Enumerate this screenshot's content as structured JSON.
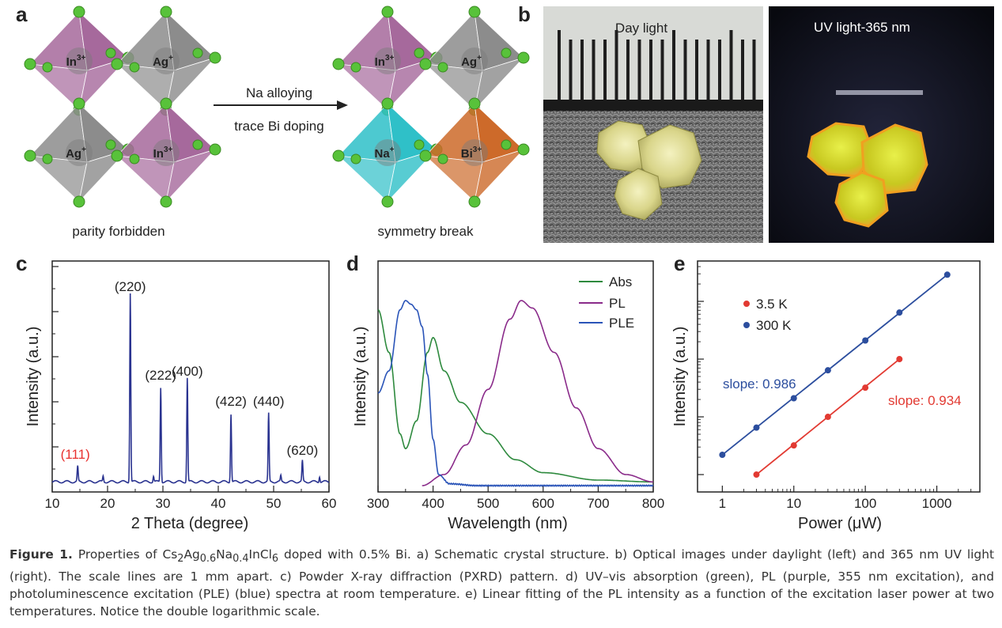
{
  "panels": {
    "a": {
      "letter": "a",
      "left_labels": [
        "In3+",
        "Ag+",
        "Ag+",
        "In3+"
      ],
      "right_labels": [
        "In3+",
        "Ag+",
        "Na+",
        "Bi3+"
      ],
      "arrow_top": "Na alloying",
      "arrow_bottom": "trace Bi doping",
      "caption_left": "parity forbidden",
      "caption_right": "symmetry break"
    },
    "b": {
      "letter": "b",
      "day_label": "Day light",
      "uv_label": "UV light-365 nm"
    },
    "c": {
      "letter": "c",
      "xlabel": "2 Theta (degree)",
      "ylabel": "Intensity (a.u.)",
      "xticks": [
        "10",
        "20",
        "30",
        "40",
        "50",
        "60"
      ],
      "peaks": [
        {
          "label": "(111)",
          "x": 14.6,
          "h": 0.08,
          "color": "#e8312f"
        },
        {
          "label": "(220)",
          "x": 24.1,
          "h": 1.0,
          "color": "#222222"
        },
        {
          "label": "(222)",
          "x": 29.6,
          "h": 0.5,
          "color": "#222222"
        },
        {
          "label": "(400)",
          "x": 34.4,
          "h": 0.55,
          "color": "#222222"
        },
        {
          "label": "(422)",
          "x": 42.3,
          "h": 0.36,
          "color": "#222222"
        },
        {
          "label": "(440)",
          "x": 49.1,
          "h": 0.36,
          "color": "#222222"
        },
        {
          "label": "(620)",
          "x": 55.2,
          "h": 0.11,
          "color": "#222222"
        }
      ]
    },
    "d": {
      "letter": "d",
      "xlabel": "Wavelength (nm)",
      "ylabel": "Intensity (a.u.)",
      "xticks": [
        "300",
        "400",
        "500",
        "600",
        "700",
        "800"
      ],
      "legend": [
        "Abs",
        "PL",
        "PLE"
      ]
    },
    "e": {
      "letter": "e",
      "xlabel": "Power (μW)",
      "ylabel": "Intensity (a.u.)",
      "xticks": [
        "1",
        "10",
        "100",
        "1000"
      ],
      "legend": [
        "3.5 K",
        "300 K"
      ],
      "slope_blue": "slope: 0.986",
      "slope_red": "slope: 0.934"
    }
  },
  "colors": {
    "in_oct": "#a6699c",
    "ag_oct": "#8c8c8c",
    "na_oct": "#2fc0c8",
    "bi_oct": "#cd6a2a",
    "cl": "#58c23a",
    "xrd": "#2a3390",
    "abs": "#2e8a3e",
    "pl": "#8a2b8a",
    "ple": "#2a54b8",
    "blue_series": "#2c4e9e",
    "red_series": "#e23a32"
  },
  "chart_data": [
    {
      "type": "line",
      "panel": "c",
      "xlabel": "2 Theta (degree)",
      "ylabel": "Intensity (a.u.)",
      "xlim": [
        10,
        60
      ],
      "peaks_2theta": [
        14.6,
        24.1,
        29.6,
        34.4,
        42.3,
        49.1,
        55.2
      ],
      "peak_labels": [
        "(111)",
        "(220)",
        "(222)",
        "(400)",
        "(422)",
        "(440)",
        "(620)"
      ]
    },
    {
      "type": "line",
      "panel": "d",
      "xlabel": "Wavelength (nm)",
      "ylabel": "Intensity (a.u.)",
      "xlim": [
        300,
        800
      ],
      "series": [
        {
          "name": "Abs",
          "x": [
            300,
            320,
            340,
            350,
            370,
            390,
            400,
            420,
            450,
            500,
            550,
            600,
            700,
            800
          ],
          "values": [
            0.95,
            0.72,
            0.28,
            0.2,
            0.35,
            0.72,
            0.8,
            0.62,
            0.45,
            0.28,
            0.14,
            0.07,
            0.03,
            0.02
          ]
        },
        {
          "name": "PL",
          "x": [
            380,
            420,
            460,
            500,
            540,
            560,
            580,
            620,
            660,
            700,
            750,
            800
          ],
          "values": [
            0.0,
            0.06,
            0.22,
            0.52,
            0.9,
            1.0,
            0.96,
            0.72,
            0.42,
            0.2,
            0.06,
            0.02
          ]
        },
        {
          "name": "PLE",
          "x": [
            300,
            320,
            340,
            350,
            360,
            370,
            380,
            390,
            400,
            410,
            430,
            480,
            800
          ],
          "values": [
            0.5,
            0.62,
            0.95,
            1.0,
            0.98,
            0.95,
            0.86,
            0.6,
            0.25,
            0.06,
            0.01,
            0.0,
            0.0
          ]
        }
      ]
    },
    {
      "type": "scatter",
      "panel": "e",
      "xlabel": "Power (μW)",
      "ylabel": "Intensity (a.u.)",
      "x_scale": "log",
      "y_scale": "log",
      "series": [
        {
          "name": "3.5 K",
          "x": [
            3,
            10,
            30,
            100,
            300
          ],
          "values": [
            1,
            3.2,
            10,
            32,
            100
          ],
          "slope": 0.934
        },
        {
          "name": "300 K",
          "x": [
            1,
            3,
            10,
            30,
            100,
            300,
            1400
          ],
          "values": [
            2.2,
            6.5,
            21,
            64,
            210,
            640,
            2900
          ],
          "slope": 0.986
        }
      ]
    }
  ],
  "caption": {
    "fig": "Figure 1.",
    "part1": " Properties of Cs",
    "sub1": "2",
    "part2": "Ag",
    "sub2": "0.6",
    "part3": "Na",
    "sub3": "0.4",
    "part4": "InCl",
    "sub4": "6",
    "part5": " doped with 0.5% Bi. a) Schematic crystal structure. b) Optical images under daylight (left) and 365 nm UV light (right). The scale lines are 1 mm apart. c) Powder X-ray diffraction (PXRD) pattern. d) UV–vis absorption (green), PL (purple, 355 nm excitation), and photoluminescence excitation (PLE) (blue) spectra at room temperature. e) Linear fitting of the PL intensity as a function of the excitation laser power at two temperatures. Notice the double logarithmic scale."
  }
}
